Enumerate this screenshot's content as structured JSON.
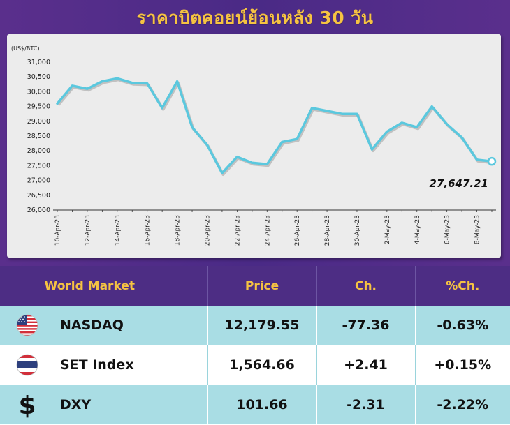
{
  "header": {
    "title": "ราคาบิตคอยน์ย้อนหลัง 30 วัน"
  },
  "chart_data": {
    "type": "line",
    "unit_label": "(US$/BTC)",
    "ylim": [
      26000,
      31000
    ],
    "y_ticks": [
      "26,000",
      "26,500",
      "27,000",
      "27,500",
      "28,000",
      "28,500",
      "29,000",
      "29,500",
      "30,000",
      "30,500",
      "31,000"
    ],
    "x_tick_labels": [
      "10-Apr-23",
      "12-Apr-23",
      "14-Apr-23",
      "16-Apr-23",
      "18-Apr-23",
      "20-Apr-23",
      "22-Apr-23",
      "24-Apr-23",
      "26-Apr-23",
      "28-Apr-23",
      "30-Apr-23",
      "2-May-23",
      "4-May-23",
      "6-May-23",
      "8-May-23"
    ],
    "x": [
      "10-Apr-23",
      "11-Apr-23",
      "12-Apr-23",
      "13-Apr-23",
      "14-Apr-23",
      "15-Apr-23",
      "16-Apr-23",
      "17-Apr-23",
      "18-Apr-23",
      "19-Apr-23",
      "20-Apr-23",
      "21-Apr-23",
      "22-Apr-23",
      "23-Apr-23",
      "24-Apr-23",
      "25-Apr-23",
      "26-Apr-23",
      "27-Apr-23",
      "28-Apr-23",
      "29-Apr-23",
      "30-Apr-23",
      "1-May-23",
      "2-May-23",
      "3-May-23",
      "4-May-23",
      "5-May-23",
      "6-May-23",
      "7-May-23",
      "8-May-23",
      "9-May-23"
    ],
    "values": [
      29600,
      30200,
      30100,
      30350,
      30450,
      30300,
      30280,
      29450,
      30350,
      28800,
      28200,
      27250,
      27800,
      27600,
      27550,
      28300,
      28400,
      29450,
      29350,
      29250,
      29250,
      28050,
      28650,
      28950,
      28800,
      29500,
      28900,
      28450,
      27700,
      27647.21
    ],
    "last_value_label": "27,647.21",
    "line_color": "#5bc8de",
    "grid": false
  },
  "table": {
    "headers": [
      "World Market",
      "Price",
      "Ch.",
      "%Ch."
    ],
    "rows": [
      {
        "icon": "us-flag-icon",
        "name": "NASDAQ",
        "price": "12,179.55",
        "ch": "-77.36",
        "pct": "-0.63%"
      },
      {
        "icon": "thai-flag-icon",
        "name": "SET Index",
        "price": "1,564.66",
        "ch": "+2.41",
        "pct": "+0.15%"
      },
      {
        "icon": "dollar-sign-icon",
        "name": "DXY",
        "price": "101.66",
        "ch": "-2.31",
        "pct": "-2.22%"
      }
    ]
  },
  "colors": {
    "header_bg": "#4d2d84",
    "title_color": "#f6c342",
    "row_alt_bg": "#a9dde4"
  }
}
